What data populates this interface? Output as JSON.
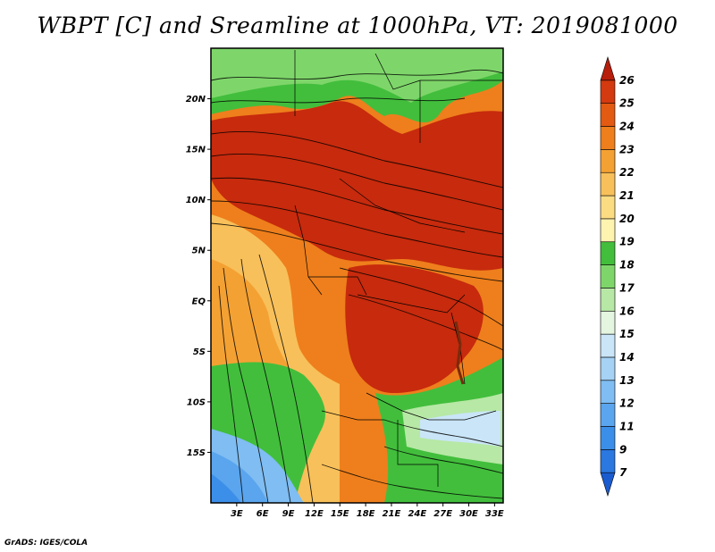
{
  "title": "WBPT [C] and Sreamline at 1000hPa, VT: 2019081000",
  "credit": "GrADS: IGES/COLA",
  "map": {
    "lat_labels": [
      "20N",
      "15N",
      "10N",
      "5N",
      "EQ",
      "5S",
      "10S",
      "15S"
    ],
    "lat_values": [
      20,
      15,
      10,
      5,
      0,
      -5,
      -10,
      -15
    ],
    "lon_labels": [
      "3E",
      "6E",
      "9E",
      "12E",
      "15E",
      "18E",
      "21E",
      "24E",
      "27E",
      "30E",
      "33E"
    ],
    "lon_values": [
      3,
      6,
      9,
      12,
      15,
      18,
      21,
      24,
      27,
      30,
      33
    ],
    "lon_range": [
      0,
      34
    ],
    "lat_range": [
      -20,
      25
    ]
  },
  "colorbar": {
    "labels": [
      "7",
      "9",
      "11",
      "12",
      "13",
      "14",
      "15",
      "16",
      "17",
      "18",
      "19",
      "20",
      "21",
      "22",
      "23",
      "24",
      "25",
      "26"
    ],
    "colors": [
      "#1a5ccf",
      "#2a78e0",
      "#3c8fe8",
      "#5aa5ee",
      "#7fbdf2",
      "#a5d2f5",
      "#c9e5f7",
      "#e4f5e0",
      "#b7e8a5",
      "#7ed66a",
      "#42be3c",
      "#fff3b0",
      "#fbdc82",
      "#f8c05a",
      "#f4a133",
      "#ee7f1c",
      "#e35a13",
      "#d33a0f",
      "#b71e0c"
    ]
  }
}
